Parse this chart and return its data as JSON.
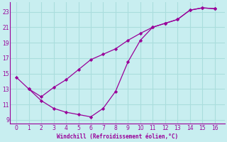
{
  "xlabel": "Windchill (Refroidissement éolien,°C)",
  "background_color": "#c8eef0",
  "grid_color": "#aadddd",
  "line_color": "#990099",
  "xlim": [
    -0.5,
    16.8
  ],
  "ylim": [
    8.5,
    24.2
  ],
  "xticks": [
    0,
    1,
    2,
    3,
    4,
    5,
    6,
    7,
    8,
    9,
    10,
    11,
    12,
    13,
    14,
    15,
    16
  ],
  "yticks": [
    9,
    11,
    13,
    15,
    17,
    19,
    21,
    23
  ],
  "curve1_x": [
    0,
    1,
    2,
    3,
    4,
    5,
    6,
    7,
    8,
    9,
    10,
    11,
    12,
    13,
    14,
    15,
    16
  ],
  "curve1_y": [
    14.5,
    13.0,
    12.0,
    13.2,
    14.2,
    15.5,
    16.8,
    17.5,
    18.2,
    19.3,
    20.2,
    21.0,
    21.5,
    22.0,
    23.2,
    23.5,
    23.4
  ],
  "curve2_x": [
    1,
    2,
    3,
    4,
    5,
    6,
    7,
    8,
    9,
    10,
    11,
    12,
    13,
    14,
    15,
    16
  ],
  "curve2_y": [
    13.0,
    11.5,
    10.5,
    10.0,
    9.7,
    9.4,
    10.5,
    12.7,
    16.5,
    19.3,
    21.0,
    21.5,
    22.0,
    23.2,
    23.5,
    23.4
  ]
}
